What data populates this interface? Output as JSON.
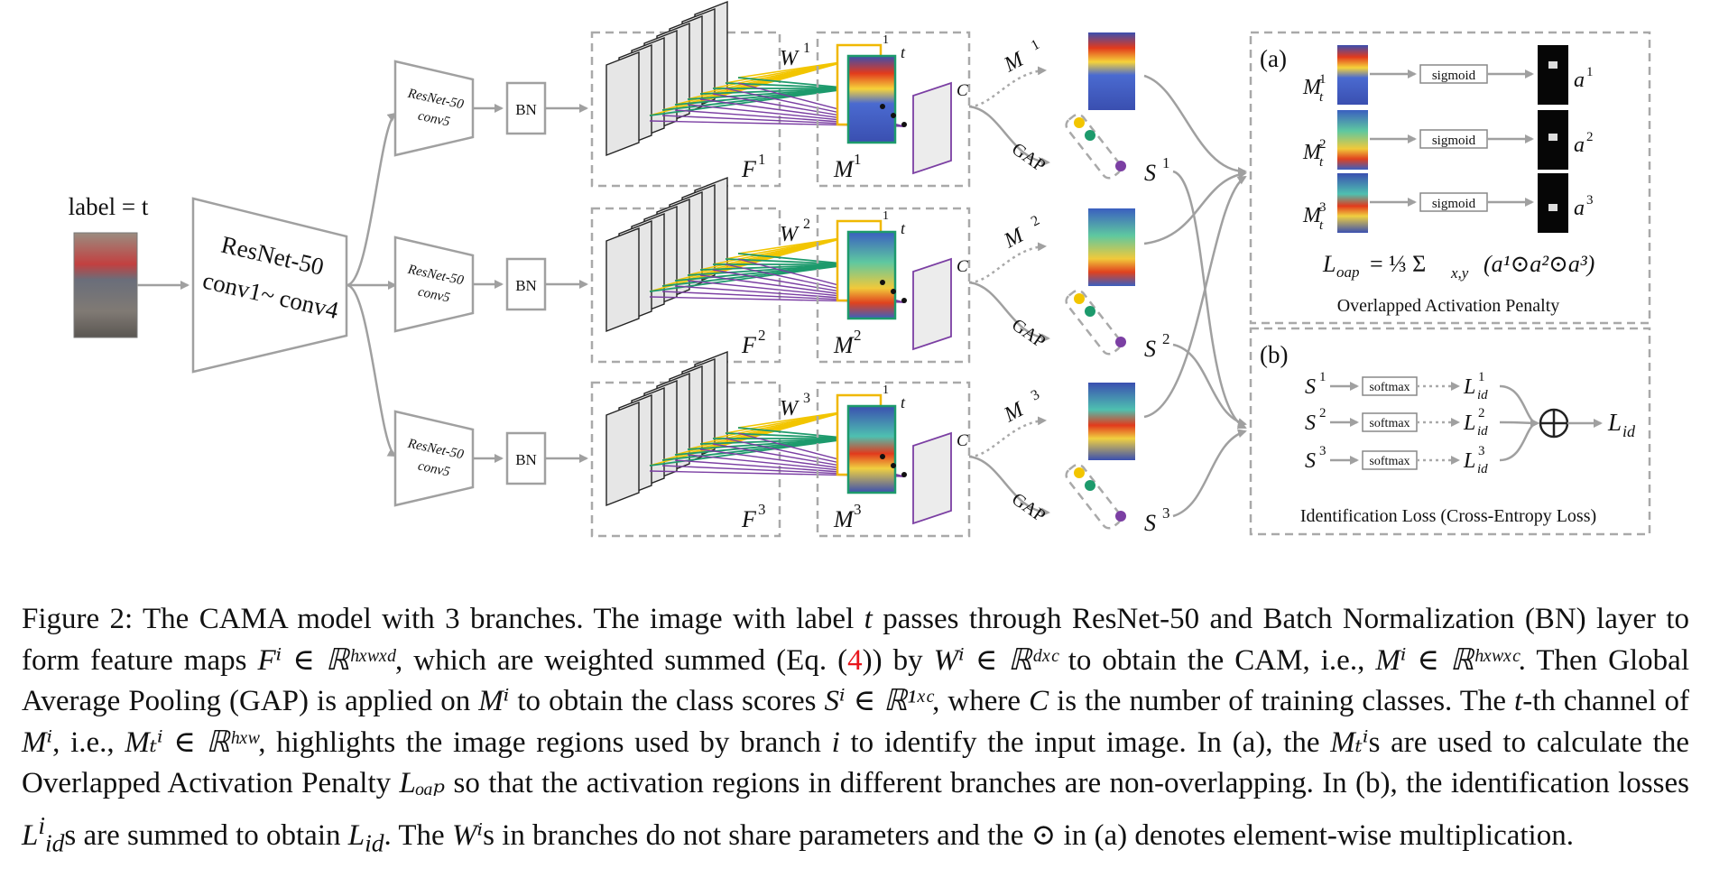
{
  "figure": {
    "input_label": "label = t",
    "backbone": {
      "line1": "ResNet-50",
      "line2": "conv1~ conv4"
    },
    "branch_block": {
      "line1": "ResNet-50",
      "line2": "conv5"
    },
    "bn": "BN",
    "mark_one": "1",
    "mark_t": "t",
    "class_c": "C",
    "gap": "GAP",
    "branches": [
      {
        "F": "F",
        "M": "M",
        "W": "W",
        "Mt": "M",
        "S": "S",
        "index": "1"
      },
      {
        "F": "F",
        "M": "M",
        "W": "W",
        "Mt": "M",
        "S": "S",
        "index": "2"
      },
      {
        "F": "F",
        "M": "M",
        "W": "W",
        "Mt": "M",
        "S": "S",
        "index": "3"
      }
    ],
    "panel_a": {
      "tag": "(a)",
      "sigmoid": "sigmoid",
      "rows": [
        {
          "m": "M",
          "a": "a",
          "index": "1"
        },
        {
          "m": "M",
          "a": "a",
          "index": "2"
        },
        {
          "m": "M",
          "a": "a",
          "index": "3"
        }
      ],
      "formula": "L",
      "formula_sub": "oap",
      "formula_rest": "= ⅓ Σ",
      "formula_sum_sub": "x,y",
      "formula_tail": "(a¹⊙a²⊙a³)",
      "title": "Overlapped Activation Penalty"
    },
    "panel_b": {
      "tag": "(b)",
      "softmax": "softmax",
      "rows": [
        {
          "s": "S",
          "l": "L",
          "sub": "id",
          "index": "1"
        },
        {
          "s": "S",
          "l": "L",
          "sub": "id",
          "index": "2"
        },
        {
          "s": "S",
          "l": "L",
          "sub": "id",
          "index": "3"
        }
      ],
      "output": "L",
      "output_sub": "id",
      "title": "Identification Loss (Cross-Entropy Loss)"
    }
  },
  "caption": {
    "figure_label": "Figure 2:",
    "seg1": " The CAMA model with 3 branches. The image with label ",
    "t1": "t",
    "seg2": " passes through ResNet-50 and Batch Normalization (BN) layer to form feature maps ",
    "math1": "Fⁱ ∈ ℝʰˣʷˣᵈ",
    "seg3": ", which are weighted summed (Eq. (",
    "eq_ref": "4",
    "seg4": ")) by ",
    "math2": "Wⁱ ∈ ℝᵈˣᶜ",
    "seg5": " to obtain the CAM, i.e., ",
    "math3": "Mⁱ ∈ ℝʰˣʷˣᶜ",
    "seg6": ". Then Global Average Pooling (GAP) is applied on ",
    "math4": "Mⁱ",
    "seg7": " to obtain the class scores ",
    "math5": "Sⁱ ∈ ℝ¹ˣᶜ",
    "seg8": ", where ",
    "math6": "C",
    "seg9": " is the number of training classes. The ",
    "t2": "t",
    "seg10": "-th channel of ",
    "math7": "Mⁱ",
    "seg11": ", i.e., ",
    "math8": "Mₜⁱ ∈ ℝʰˣʷ",
    "seg12": ", highlights the image regions used by branch ",
    "math9": "i",
    "seg13": " to identify the input image. In (a), the ",
    "math10": "Mₜⁱ",
    "seg14": "s are used to calculate the Overlapped Activation Penalty ",
    "math11": "Lₒₐₚ",
    "seg15": " so that the activation regions in different branches are non-overlapping. In (b), the identification losses ",
    "math12": "L",
    "math12_sub": "id",
    "math12_sup": "i",
    "seg16": "s are summed to obtain ",
    "math13": "L",
    "math13_sub": "id",
    "seg17": ". The ",
    "math14": "Wⁱ",
    "seg18": "s in branches do not share parameters and the ⊙ in (a) denotes element-wise multiplication."
  },
  "colors": {
    "line_gray": "#a0a0a0",
    "box_fill": "#e6e6e6",
    "purple": "#7b3fa3",
    "green": "#1d9a6c",
    "yellow": "#f2c500",
    "orange_frame": "#f0b800",
    "ref_red": "#e8151b"
  }
}
